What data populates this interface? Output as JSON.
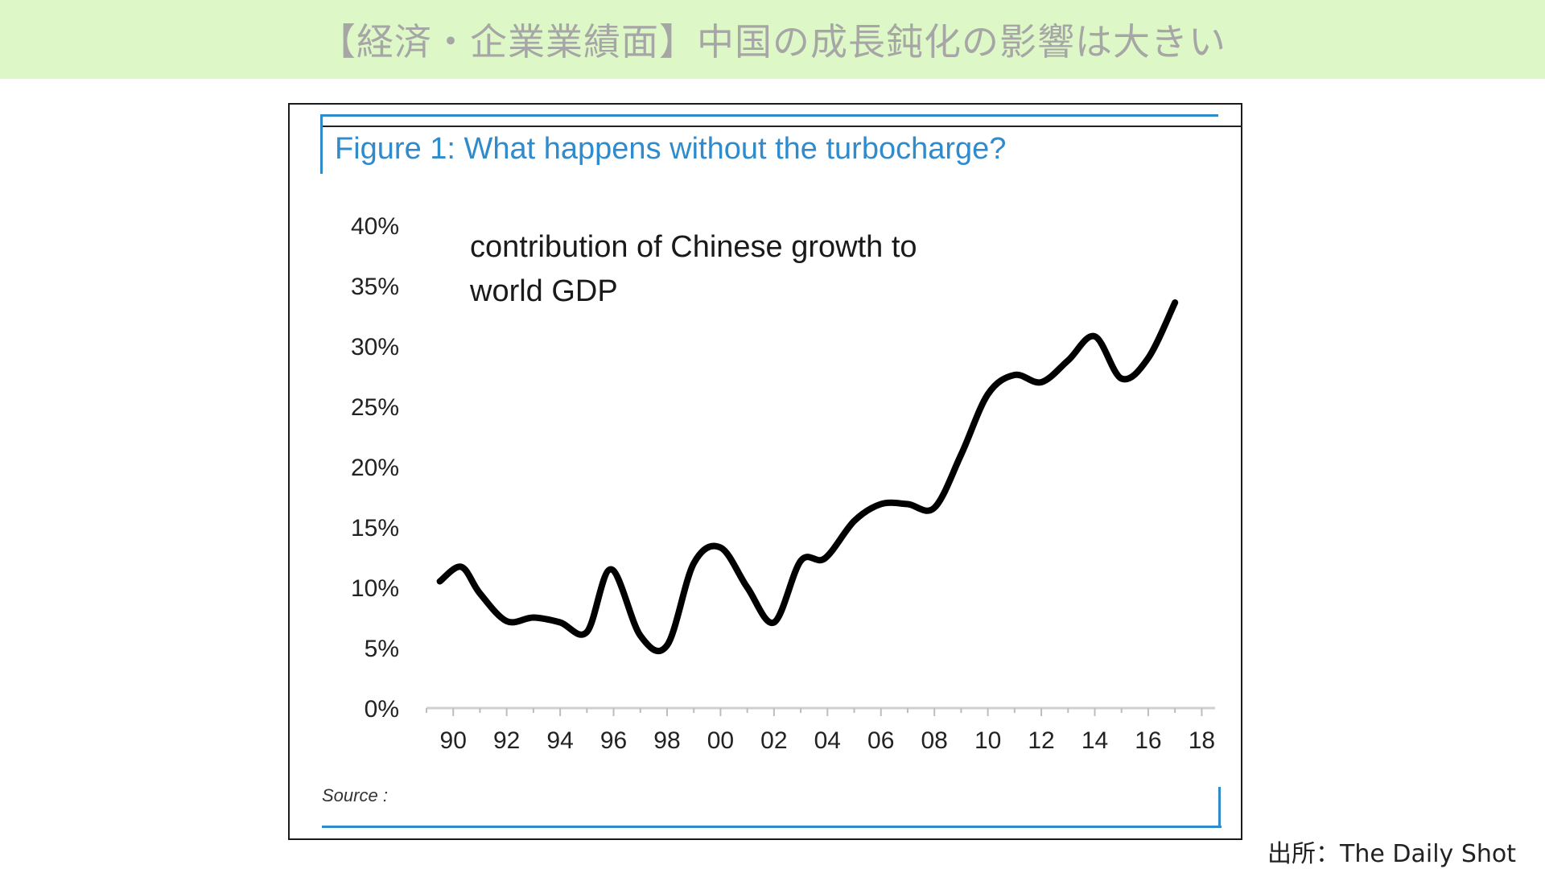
{
  "header": {
    "title": "【経済・企業業績面】中国の成長鈍化の影響は大きい"
  },
  "figure": {
    "title": "Figure 1: What happens without the turbocharge?",
    "source": "Source :"
  },
  "credit": "出所：The Daily Shot",
  "colors": {
    "banner": "#ddf8c6",
    "title_blue": "#2f8bcc",
    "line": "#000000"
  },
  "chart_data": {
    "type": "line",
    "annotation": [
      "contribution of Chinese growth to",
      "world GDP"
    ],
    "xlabel": "",
    "ylabel": "",
    "ylim": [
      0,
      40
    ],
    "xlim": [
      1989,
      2018.5
    ],
    "y_ticks": [
      0,
      5,
      10,
      15,
      20,
      25,
      30,
      35,
      40
    ],
    "y_tick_labels": [
      "0%",
      "5%",
      "10%",
      "15%",
      "20%",
      "25%",
      "30%",
      "35%",
      "40%"
    ],
    "x_ticks": [
      1990,
      1992,
      1994,
      1996,
      1998,
      2000,
      2002,
      2004,
      2006,
      2008,
      2010,
      2012,
      2014,
      2016,
      2018
    ],
    "x_tick_labels": [
      "90",
      "92",
      "94",
      "96",
      "98",
      "00",
      "02",
      "04",
      "06",
      "08",
      "10",
      "12",
      "14",
      "16",
      "18"
    ],
    "grid": false,
    "legend": "none",
    "series": [
      {
        "x": [
          1989.5,
          1990.3,
          1991.0,
          1992.0,
          1993.0,
          1994.0,
          1995.0,
          1995.9,
          1997.0,
          1998.0,
          1999.0,
          2000.0,
          2001.0,
          2002.0,
          2003.0,
          2003.9,
          2005.0,
          2006.0,
          2007.0,
          2008.0,
          2009.0,
          2010.0,
          2011.0,
          2012.0,
          2013.0,
          2014.0,
          2015.0,
          2016.0,
          2017.0
        ],
        "values": [
          10.5,
          11.7,
          9.5,
          7.2,
          7.5,
          7.1,
          6.3,
          11.5,
          6.0,
          5.2,
          12.0,
          13.3,
          10.0,
          7.1,
          12.2,
          12.4,
          15.5,
          16.9,
          16.9,
          16.6,
          21.0,
          26.0,
          27.6,
          27.0,
          28.8,
          30.8,
          27.3,
          29.0,
          33.6
        ]
      }
    ]
  }
}
